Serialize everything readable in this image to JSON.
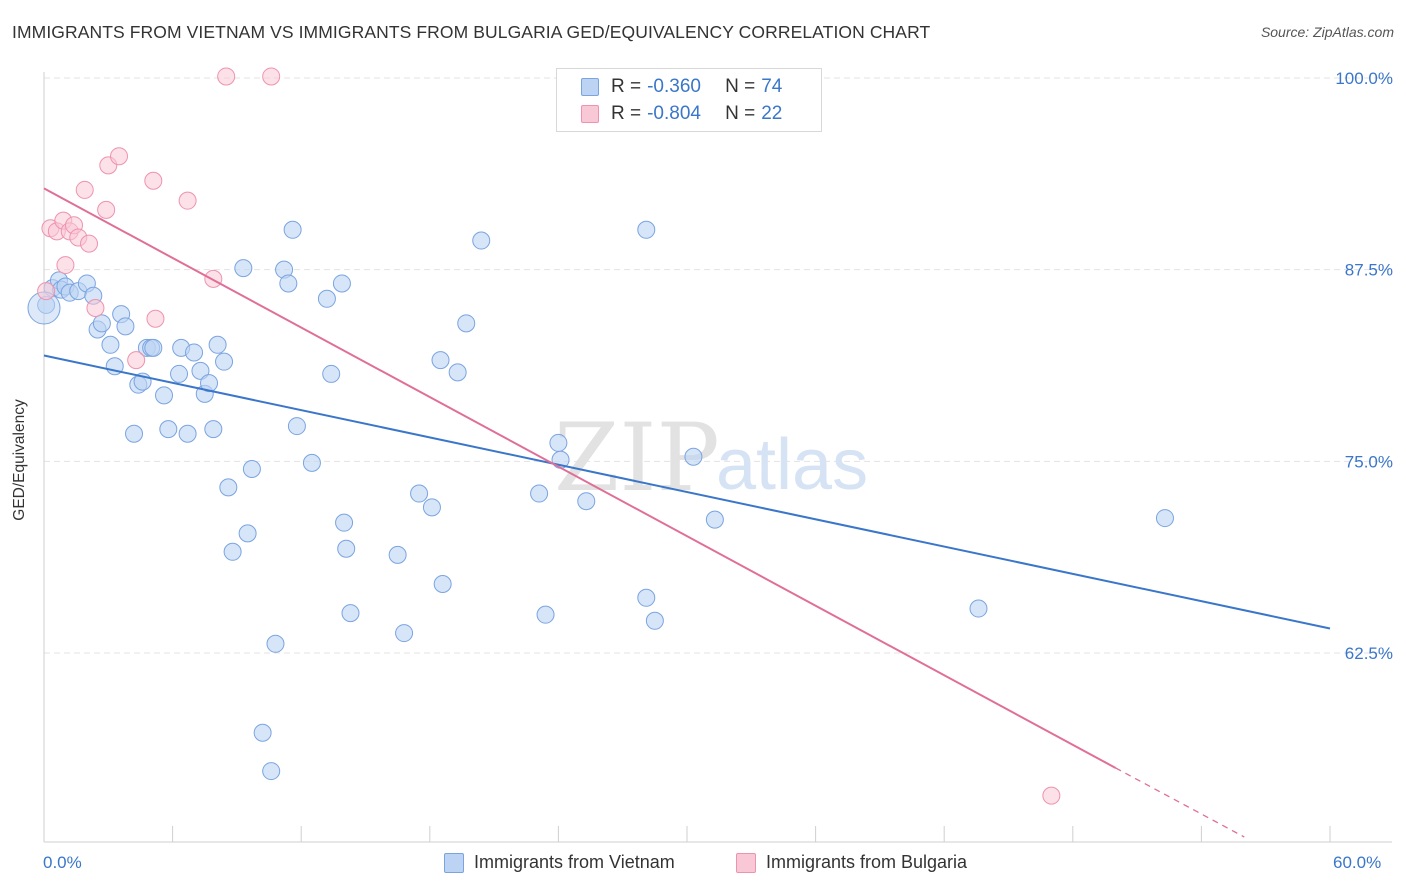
{
  "title": "IMMIGRANTS FROM VIETNAM VS IMMIGRANTS FROM BULGARIA GED/EQUIVALENCY CORRELATION CHART",
  "source": "Source: ZipAtlas.com",
  "watermark": {
    "zip": "ZIP",
    "atlas": "atlas"
  },
  "colors": {
    "blue": "#3a76c9",
    "blue_fill": "#bcd3f4",
    "pink": "#e06f98",
    "pink_fill": "#f9c8d6",
    "tick_text": "#3a76c9"
  },
  "legend": {
    "rows": [
      {
        "r_label": "R =",
        "r_value": "-0.360",
        "n_label": "N =",
        "n_value": "74"
      },
      {
        "r_label": "R =",
        "r_value": "-0.804",
        "n_label": "N =",
        "n_value": "22"
      }
    ]
  },
  "chart_data": {
    "type": "scatter",
    "title": "IMMIGRANTS FROM VIETNAM VS IMMIGRANTS FROM BULGARIA GED/EQUIVALENCY CORRELATION CHART",
    "xlabel": "",
    "ylabel": "GED/Equivalency",
    "xlim": [
      0,
      60
    ],
    "ylim": [
      50,
      101
    ],
    "x_tick_labels": [
      "0.0%",
      "60.0%"
    ],
    "y_ticks": [
      62.5,
      75.0,
      87.5,
      100.0
    ],
    "y_tick_labels": [
      "62.5%",
      "75.0%",
      "87.5%",
      "100.0%"
    ],
    "grid": true,
    "legend_position": "top-center",
    "series": [
      {
        "name": "Immigrants from Vietnam",
        "color": "#3a76c9",
        "trend": {
          "x": [
            0,
            60
          ],
          "y": [
            81.9,
            64.1
          ]
        },
        "points": [
          [
            0.1,
            85.2
          ],
          [
            0.4,
            86.3
          ],
          [
            0.7,
            86.8
          ],
          [
            0.8,
            86.2
          ],
          [
            1.0,
            86.4
          ],
          [
            1.2,
            86.0
          ],
          [
            1.6,
            86.1
          ],
          [
            2.0,
            86.6
          ],
          [
            2.3,
            85.8
          ],
          [
            2.5,
            83.6
          ],
          [
            2.7,
            84.0
          ],
          [
            3.1,
            82.6
          ],
          [
            3.3,
            81.2
          ],
          [
            3.6,
            84.6
          ],
          [
            3.8,
            83.8
          ],
          [
            4.2,
            76.8
          ],
          [
            4.4,
            80.0
          ],
          [
            4.6,
            80.2
          ],
          [
            4.8,
            82.4
          ],
          [
            5.0,
            82.4
          ],
          [
            5.1,
            82.4
          ],
          [
            5.6,
            79.3
          ],
          [
            5.8,
            77.1
          ],
          [
            6.3,
            80.7
          ],
          [
            6.4,
            82.4
          ],
          [
            6.7,
            76.8
          ],
          [
            7.0,
            82.1
          ],
          [
            7.3,
            80.9
          ],
          [
            7.5,
            79.4
          ],
          [
            7.7,
            80.1
          ],
          [
            7.9,
            77.1
          ],
          [
            8.1,
            82.6
          ],
          [
            8.4,
            81.5
          ],
          [
            8.6,
            73.3
          ],
          [
            8.8,
            69.1
          ],
          [
            9.3,
            87.6
          ],
          [
            9.5,
            70.3
          ],
          [
            9.7,
            74.5
          ],
          [
            10.2,
            57.3
          ],
          [
            10.6,
            54.8
          ],
          [
            10.8,
            63.1
          ],
          [
            11.2,
            87.5
          ],
          [
            11.4,
            86.6
          ],
          [
            11.6,
            90.1
          ],
          [
            11.8,
            77.3
          ],
          [
            12.5,
            74.9
          ],
          [
            13.2,
            85.6
          ],
          [
            13.4,
            80.7
          ],
          [
            13.9,
            86.6
          ],
          [
            14.0,
            71.0
          ],
          [
            14.1,
            69.3
          ],
          [
            14.3,
            65.1
          ],
          [
            16.5,
            68.9
          ],
          [
            16.8,
            63.8
          ],
          [
            17.5,
            72.9
          ],
          [
            18.1,
            72.0
          ],
          [
            18.5,
            81.6
          ],
          [
            18.6,
            67.0
          ],
          [
            19.3,
            80.8
          ],
          [
            19.7,
            84.0
          ],
          [
            20.4,
            89.4
          ],
          [
            23.1,
            72.9
          ],
          [
            23.4,
            65.0
          ],
          [
            24.0,
            76.2
          ],
          [
            24.1,
            75.1
          ],
          [
            25.3,
            72.4
          ],
          [
            28.1,
            66.1
          ],
          [
            28.1,
            90.1
          ],
          [
            28.5,
            64.6
          ],
          [
            30.3,
            75.3
          ],
          [
            31.3,
            71.2
          ],
          [
            43.6,
            65.4
          ],
          [
            52.3,
            71.3
          ],
          [
            0.0,
            85.0
          ]
        ]
      },
      {
        "name": "Immigrants from Bulgaria",
        "color": "#e06f98",
        "trend": {
          "x": [
            0,
            50
          ],
          "y": [
            92.8,
            55.0
          ]
        },
        "trend_dashed_to": {
          "x": 56,
          "y": 50.5
        },
        "points": [
          [
            0.1,
            86.1
          ],
          [
            0.3,
            90.2
          ],
          [
            0.6,
            90.0
          ],
          [
            0.9,
            90.7
          ],
          [
            1.2,
            90.0
          ],
          [
            1.4,
            90.4
          ],
          [
            1.6,
            89.6
          ],
          [
            1.9,
            92.7
          ],
          [
            2.1,
            89.2
          ],
          [
            2.4,
            85.0
          ],
          [
            2.9,
            91.4
          ],
          [
            3.0,
            94.3
          ],
          [
            3.5,
            94.9
          ],
          [
            4.3,
            81.6
          ],
          [
            5.1,
            93.3
          ],
          [
            5.2,
            84.3
          ],
          [
            6.7,
            92.0
          ],
          [
            7.9,
            86.9
          ],
          [
            8.5,
            100.1
          ],
          [
            10.6,
            100.1
          ],
          [
            47.0,
            53.2
          ],
          [
            1.0,
            87.8
          ]
        ]
      }
    ]
  },
  "bottom_legend": {
    "items": [
      {
        "label": "Immigrants from Vietnam"
      },
      {
        "label": "Immigrants from Bulgaria"
      }
    ]
  }
}
